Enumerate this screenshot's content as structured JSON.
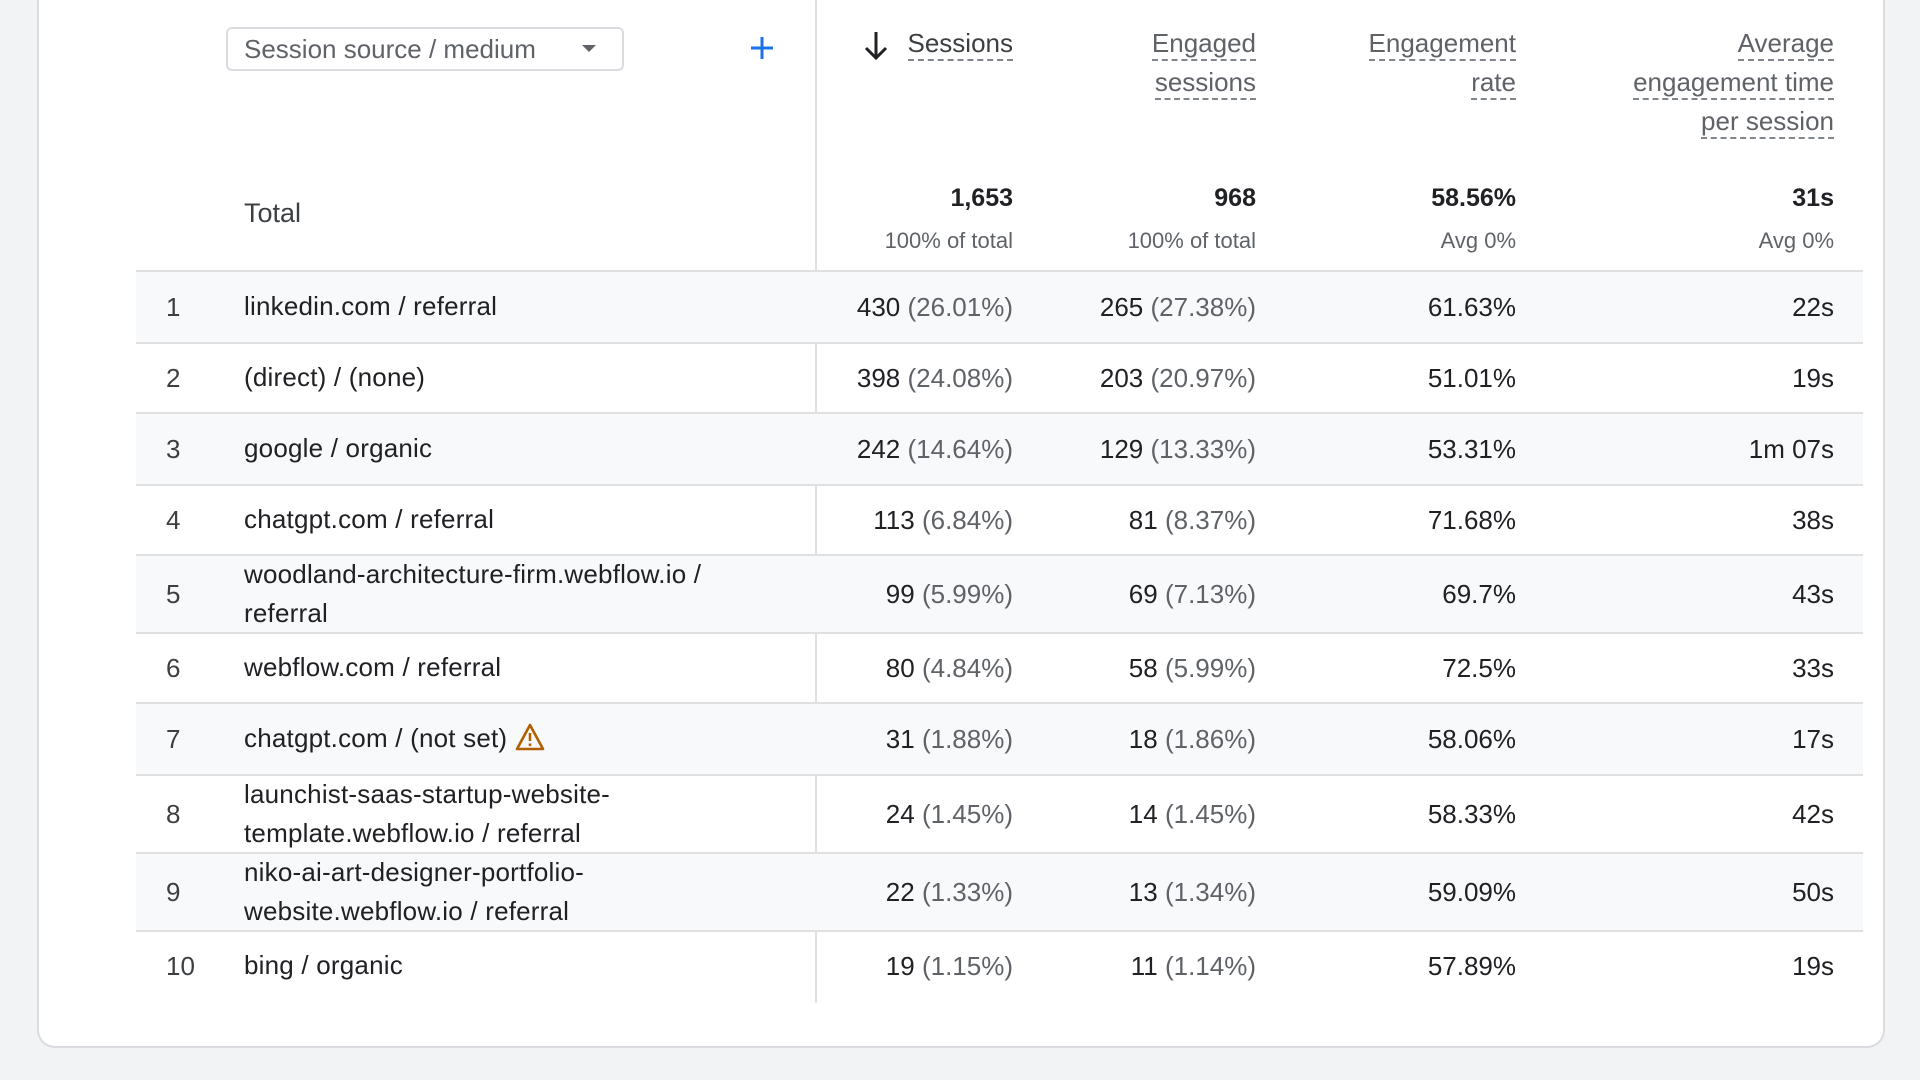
{
  "dimension_picker": {
    "label": "Session source / medium"
  },
  "add_dimension_icon": "plus-icon",
  "sort_icon": "arrow-down-icon",
  "headers": {
    "sessions": "Sessions",
    "engaged_l1": "Engaged",
    "engaged_l2": "sessions",
    "rate_l1": "Engagement",
    "rate_l2": "rate",
    "avg_l1": "Average",
    "avg_l2": "engagement time",
    "avg_l3": "per session"
  },
  "totals": {
    "label": "Total",
    "sessions": "1,653",
    "sessions_sub": "100% of total",
    "engaged": "968",
    "engaged_sub": "100% of total",
    "rate": "58.56%",
    "rate_sub": "Avg 0%",
    "avg": "31s",
    "avg_sub": "Avg 0%"
  },
  "rows": [
    {
      "idx": "1",
      "src1": "linkedin.com / referral",
      "src2": "",
      "sessions": "430",
      "sessions_pct": "(26.01%)",
      "engaged": "265",
      "engaged_pct": "(27.38%)",
      "rate": "61.63%",
      "avg": "22s"
    },
    {
      "idx": "2",
      "src1": "(direct) / (none)",
      "src2": "",
      "sessions": "398",
      "sessions_pct": "(24.08%)",
      "engaged": "203",
      "engaged_pct": "(20.97%)",
      "rate": "51.01%",
      "avg": "19s"
    },
    {
      "idx": "3",
      "src1": "google / organic",
      "src2": "",
      "sessions": "242",
      "sessions_pct": "(14.64%)",
      "engaged": "129",
      "engaged_pct": "(13.33%)",
      "rate": "53.31%",
      "avg": "1m 07s"
    },
    {
      "idx": "4",
      "src1": "chatgpt.com / referral",
      "src2": "",
      "sessions": "113",
      "sessions_pct": "(6.84%)",
      "engaged": "81",
      "engaged_pct": "(8.37%)",
      "rate": "71.68%",
      "avg": "38s"
    },
    {
      "idx": "5",
      "src1": "woodland-architecture-firm.webflow.io /",
      "src2": "referral",
      "sessions": "99",
      "sessions_pct": "(5.99%)",
      "engaged": "69",
      "engaged_pct": "(7.13%)",
      "rate": "69.7%",
      "avg": "43s"
    },
    {
      "idx": "6",
      "src1": "webflow.com / referral",
      "src2": "",
      "sessions": "80",
      "sessions_pct": "(4.84%)",
      "engaged": "58",
      "engaged_pct": "(5.99%)",
      "rate": "72.5%",
      "avg": "33s"
    },
    {
      "idx": "7",
      "src1": "chatgpt.com / (not set)",
      "src2": "",
      "warning_icon": "warning-icon",
      "sessions": "31",
      "sessions_pct": "(1.88%)",
      "engaged": "18",
      "engaged_pct": "(1.86%)",
      "rate": "58.06%",
      "avg": "17s"
    },
    {
      "idx": "8",
      "src1": "launchist-saas-startup-website-",
      "src2": "template.webflow.io / referral",
      "sessions": "24",
      "sessions_pct": "(1.45%)",
      "engaged": "14",
      "engaged_pct": "(1.45%)",
      "rate": "58.33%",
      "avg": "42s"
    },
    {
      "idx": "9",
      "src1": "niko-ai-art-designer-portfolio-",
      "src2": "website.webflow.io / referral",
      "sessions": "22",
      "sessions_pct": "(1.33%)",
      "engaged": "13",
      "engaged_pct": "(1.34%)",
      "rate": "59.09%",
      "avg": "50s"
    },
    {
      "idx": "10",
      "src1": "bing / organic",
      "src2": "",
      "sessions": "19",
      "sessions_pct": "(1.15%)",
      "engaged": "11",
      "engaged_pct": "(1.14%)",
      "rate": "57.89%",
      "avg": "19s"
    }
  ],
  "colors": {
    "accent": "#1a73e8",
    "warning": "#b06000",
    "row_alt": "#f8f9fa",
    "divider": "#e0e0e0"
  }
}
